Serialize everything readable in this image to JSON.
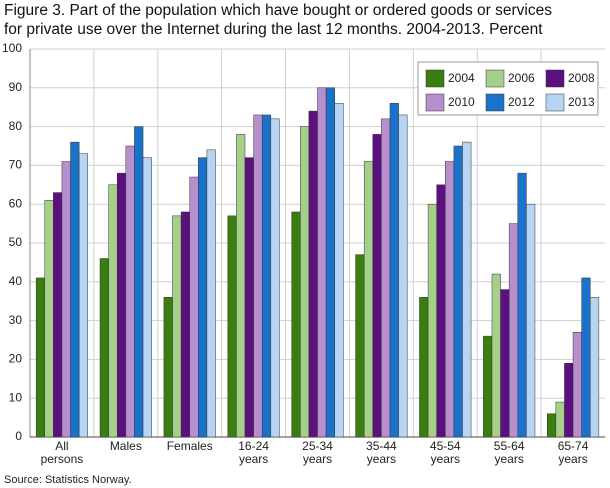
{
  "chart_data": {
    "type": "bar",
    "title": [
      "Figure 3. Part of the population which have bought or ordered goods or services",
      "for private use over the Internet during the last 12 months. 2004-2013. Percent"
    ],
    "source": "Source: Statistics Norway.",
    "categories": [
      "All persons",
      "Males",
      "Females",
      "16-24 years",
      "25-34 years",
      "35-44 years",
      "45-54 years",
      "55-64 years",
      "65-74 years"
    ],
    "series": [
      {
        "name": "2004",
        "color": "#3a7d10",
        "values": [
          41,
          46,
          36,
          57,
          58,
          47,
          36,
          26,
          6
        ]
      },
      {
        "name": "2006",
        "color": "#a6cf8a",
        "values": [
          61,
          65,
          57,
          78,
          80,
          71,
          60,
          42,
          9
        ]
      },
      {
        "name": "2008",
        "color": "#5c0f7f",
        "values": [
          63,
          68,
          58,
          72,
          84,
          78,
          65,
          38,
          19
        ]
      },
      {
        "name": "2010",
        "color": "#b88fce",
        "values": [
          71,
          75,
          67,
          83,
          90,
          82,
          71,
          55,
          27
        ]
      },
      {
        "name": "2012",
        "color": "#1a73c9",
        "values": [
          76,
          80,
          72,
          83,
          90,
          86,
          75,
          68,
          41
        ]
      },
      {
        "name": "2013",
        "color": "#b5d5f2",
        "values": [
          73,
          72,
          74,
          82,
          86,
          83,
          76,
          60,
          36
        ]
      }
    ],
    "ylim": [
      0,
      100
    ],
    "yticks": [
      0,
      10,
      20,
      30,
      40,
      50,
      60,
      70,
      80,
      90,
      100
    ],
    "grid": true,
    "legend": "top-right"
  }
}
